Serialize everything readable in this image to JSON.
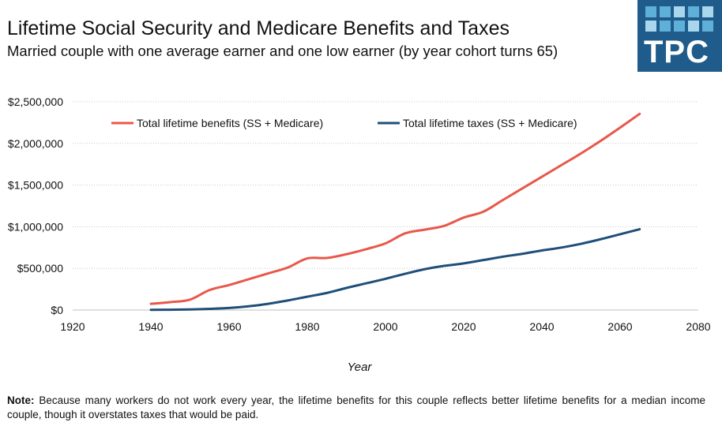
{
  "header": {
    "title": "Lifetime Social Security and Medicare Benefits and Taxes",
    "subtitle": "Married couple with one average earner and one low earner (by year cohort turns 65)"
  },
  "logo": {
    "text": "TPC",
    "bg_color": "#1f5c8b"
  },
  "note": {
    "label": "Note:",
    "text": "Because many workers do not work every year, the lifetime benefits for this couple reflects better lifetime benefits for a median income couple, though it overstates taxes that would be paid."
  },
  "chart_data": {
    "type": "line",
    "title": "Lifetime Social Security and Medicare Benefits and Taxes",
    "xlabel": "Year",
    "ylabel": "",
    "xlim": [
      1920,
      2080
    ],
    "ylim": [
      0,
      2500000
    ],
    "x_ticks": [
      1920,
      1940,
      1960,
      1980,
      2000,
      2020,
      2040,
      2060,
      2080
    ],
    "x_tick_labels": [
      "1920",
      "1940",
      "1960",
      "1980",
      "2000",
      "2020",
      "2040",
      "2060",
      "2080"
    ],
    "y_ticks": [
      0,
      500000,
      1000000,
      1500000,
      2000000,
      2500000
    ],
    "y_tick_labels": [
      "$0",
      "$500,000",
      "$1,000,000",
      "$1,500,000",
      "$2,000,000",
      "$2,500,000"
    ],
    "grid": "horizontal-dotted",
    "legend_position": "top",
    "series": [
      {
        "name": "Total lifetime benefits (SS + Medicare)",
        "color": "#e8584a",
        "x": [
          1940,
          1945,
          1950,
          1955,
          1960,
          1965,
          1970,
          1975,
          1980,
          1985,
          1990,
          1995,
          2000,
          2005,
          2010,
          2015,
          2020,
          2025,
          2030,
          2035,
          2040,
          2045,
          2050,
          2055,
          2060,
          2065
        ],
        "y": [
          75000,
          95000,
          125000,
          240000,
          300000,
          370000,
          440000,
          510000,
          620000,
          625000,
          670000,
          730000,
          800000,
          920000,
          965000,
          1010000,
          1110000,
          1180000,
          1320000,
          1460000,
          1600000,
          1740000,
          1880000,
          2030000,
          2190000,
          2355000
        ]
      },
      {
        "name": "Total lifetime taxes (SS + Medicare)",
        "color": "#1f4e79",
        "x": [
          1940,
          1945,
          1950,
          1955,
          1960,
          1965,
          1970,
          1975,
          1980,
          1985,
          1990,
          1995,
          2000,
          2005,
          2010,
          2015,
          2020,
          2025,
          2030,
          2035,
          2040,
          2045,
          2050,
          2055,
          2060,
          2065
        ],
        "y": [
          2000,
          4000,
          7000,
          14000,
          25000,
          45000,
          75000,
          115000,
          160000,
          205000,
          265000,
          320000,
          375000,
          435000,
          490000,
          530000,
          560000,
          600000,
          640000,
          675000,
          715000,
          750000,
          795000,
          850000,
          910000,
          970000
        ]
      }
    ]
  }
}
